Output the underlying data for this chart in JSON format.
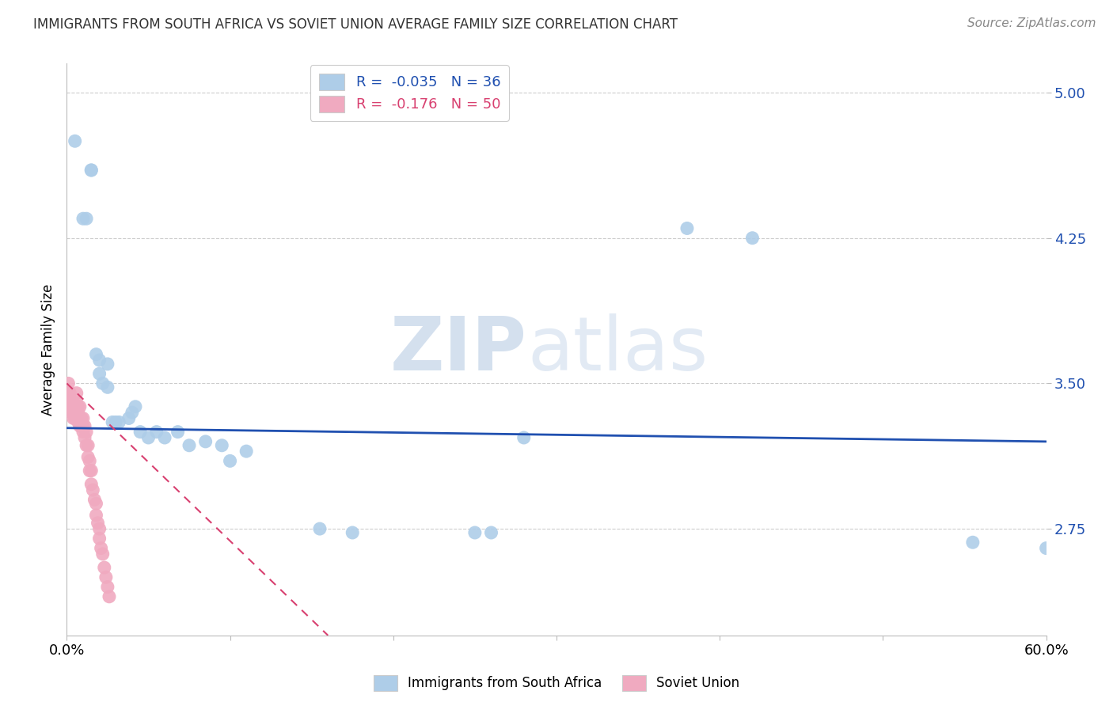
{
  "title": "IMMIGRANTS FROM SOUTH AFRICA VS SOVIET UNION AVERAGE FAMILY SIZE CORRELATION CHART",
  "source": "Source: ZipAtlas.com",
  "ylabel": "Average Family Size",
  "xlim": [
    0.0,
    0.6
  ],
  "ylim": [
    2.2,
    5.15
  ],
  "yticks": [
    2.75,
    3.5,
    4.25,
    5.0
  ],
  "xticks": [
    0.0,
    0.1,
    0.2,
    0.3,
    0.4,
    0.5,
    0.6
  ],
  "xtick_labels_show": [
    "0.0%",
    "",
    "",
    "",
    "",
    "",
    "60.0%"
  ],
  "blue_R": -0.035,
  "blue_N": 36,
  "pink_R": -0.176,
  "pink_N": 50,
  "blue_color": "#aecde8",
  "pink_color": "#f0aac0",
  "blue_line_color": "#2050b0",
  "pink_line_color": "#d84070",
  "legend_label_blue": "Immigrants from South Africa",
  "legend_label_pink": "Soviet Union",
  "watermark_zip": "ZIP",
  "watermark_atlas": "atlas",
  "blue_x": [
    0.005,
    0.01,
    0.012,
    0.015,
    0.015,
    0.018,
    0.02,
    0.02,
    0.022,
    0.025,
    0.025,
    0.028,
    0.03,
    0.032,
    0.038,
    0.04,
    0.042,
    0.045,
    0.05,
    0.055,
    0.06,
    0.068,
    0.075,
    0.085,
    0.095,
    0.1,
    0.11,
    0.155,
    0.175,
    0.25,
    0.26,
    0.28,
    0.38,
    0.42,
    0.555,
    0.6
  ],
  "blue_y": [
    4.75,
    4.35,
    4.35,
    4.6,
    4.6,
    3.65,
    3.62,
    3.55,
    3.5,
    3.48,
    3.6,
    3.3,
    3.3,
    3.3,
    3.32,
    3.35,
    3.38,
    3.25,
    3.22,
    3.25,
    3.22,
    3.25,
    3.18,
    3.2,
    3.18,
    3.1,
    3.15,
    2.75,
    2.73,
    2.73,
    2.73,
    3.22,
    4.3,
    4.25,
    2.68,
    2.65
  ],
  "pink_x": [
    0.001,
    0.001,
    0.002,
    0.002,
    0.003,
    0.003,
    0.003,
    0.004,
    0.004,
    0.004,
    0.005,
    0.005,
    0.005,
    0.006,
    0.006,
    0.006,
    0.007,
    0.007,
    0.007,
    0.008,
    0.008,
    0.008,
    0.009,
    0.009,
    0.01,
    0.01,
    0.01,
    0.011,
    0.011,
    0.012,
    0.012,
    0.013,
    0.013,
    0.014,
    0.014,
    0.015,
    0.015,
    0.016,
    0.017,
    0.018,
    0.018,
    0.019,
    0.02,
    0.02,
    0.021,
    0.022,
    0.023,
    0.024,
    0.025,
    0.026
  ],
  "pink_y": [
    3.5,
    3.45,
    3.45,
    3.4,
    3.4,
    3.38,
    3.35,
    3.4,
    3.35,
    3.32,
    3.38,
    3.35,
    3.32,
    3.45,
    3.4,
    3.35,
    3.38,
    3.35,
    3.3,
    3.38,
    3.32,
    3.28,
    3.32,
    3.28,
    3.32,
    3.28,
    3.25,
    3.28,
    3.22,
    3.25,
    3.18,
    3.18,
    3.12,
    3.1,
    3.05,
    3.05,
    2.98,
    2.95,
    2.9,
    2.88,
    2.82,
    2.78,
    2.75,
    2.7,
    2.65,
    2.62,
    2.55,
    2.5,
    2.45,
    2.4
  ],
  "blue_trend_x": [
    0.0,
    0.6
  ],
  "blue_trend_y": [
    3.27,
    3.2
  ],
  "pink_trend_x": [
    0.0,
    0.16
  ],
  "pink_trend_y": [
    3.5,
    2.2
  ]
}
